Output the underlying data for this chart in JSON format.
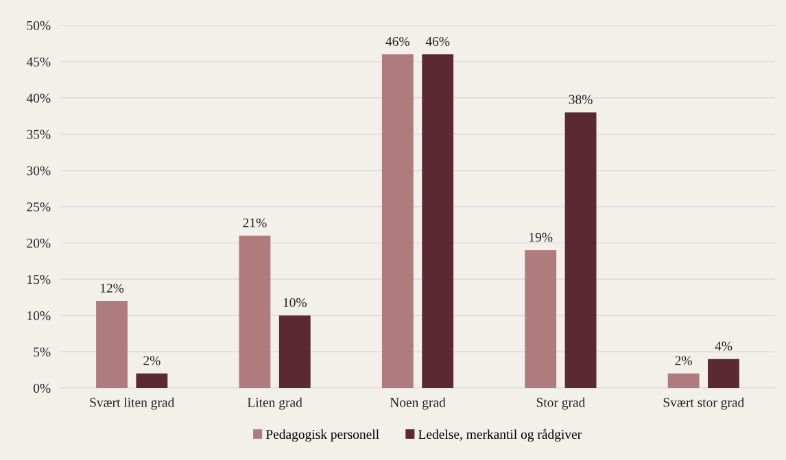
{
  "chart_data": {
    "type": "bar",
    "categories": [
      "Svært liten grad",
      "Liten grad",
      "Noen grad",
      "Stor grad",
      "Svært stor grad"
    ],
    "series": [
      {
        "name": "Pedagogisk personell",
        "color": "#b07b7d",
        "values": [
          12,
          21,
          46,
          19,
          2
        ],
        "value_labels": [
          "12%",
          "21%",
          "46%",
          "19%",
          "2%"
        ]
      },
      {
        "name": "Ledelse, merkantil og rådgiver",
        "color": "#5a2931",
        "values": [
          2,
          10,
          46,
          38,
          4
        ],
        "value_labels": [
          "2%",
          "10%",
          "46%",
          "38%",
          "4%"
        ]
      }
    ],
    "ylim": [
      0,
      50
    ],
    "yticks": [
      {
        "value": 0,
        "label": "0%"
      },
      {
        "value": 5,
        "label": "5%"
      },
      {
        "value": 10,
        "label": "10%"
      },
      {
        "value": 15,
        "label": "15%"
      },
      {
        "value": 20,
        "label": "20%"
      },
      {
        "value": 25,
        "label": "25%"
      },
      {
        "value": 30,
        "label": "30%"
      },
      {
        "value": 35,
        "label": "35%"
      },
      {
        "value": 40,
        "label": "40%"
      },
      {
        "value": 45,
        "label": "45%"
      },
      {
        "value": 50,
        "label": "50%"
      }
    ],
    "grid": "y",
    "legend": "bottom"
  }
}
